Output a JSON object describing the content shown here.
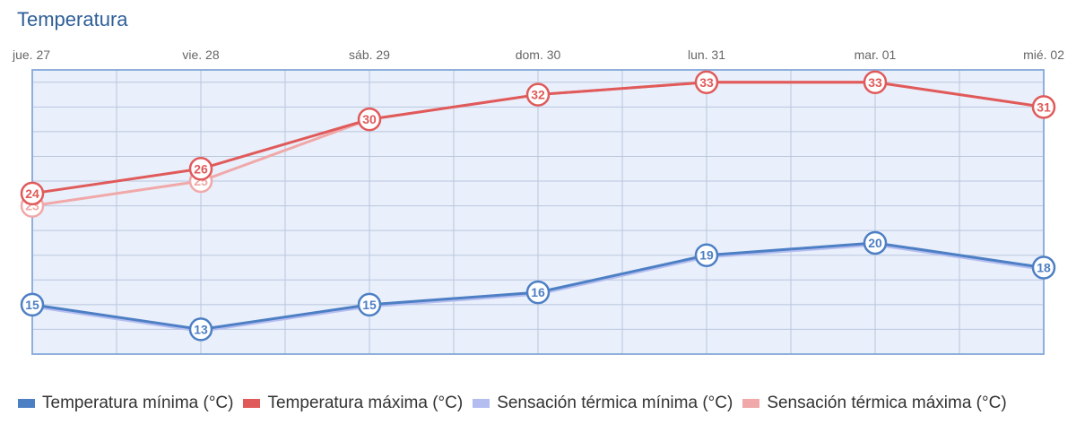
{
  "title": "Temperatura",
  "colors": {
    "plot_bg": "#e9effb",
    "grid": "#b9c7de",
    "border": "#8fb0dc",
    "min": "#4d7fc4",
    "max": "#e05a5a",
    "feel_min": "#b3bdf0",
    "feel_max": "#f0a8a8"
  },
  "chart_data": {
    "type": "line",
    "title": "Temperatura",
    "categories": [
      "jue. 27",
      "vie. 28",
      "sáb. 29",
      "dom. 30",
      "lun. 31",
      "mar. 01",
      "mié. 02"
    ],
    "ylim": [
      11,
      34
    ],
    "grid": true,
    "legend_position": "bottom",
    "series": [
      {
        "name": "Temperatura mínima (°C)",
        "key": "min",
        "values": [
          15,
          13,
          15,
          16,
          19,
          20,
          18
        ],
        "labels": true
      },
      {
        "name": "Temperatura máxima (°C)",
        "key": "max",
        "values": [
          24,
          26,
          30,
          32,
          33,
          33,
          31
        ],
        "labels": true
      },
      {
        "name": "Sensación térmica mínima (°C)",
        "key": "feel_min",
        "values": [
          15,
          13,
          15,
          16,
          19,
          20,
          18
        ],
        "labels": false
      },
      {
        "name": "Sensación térmica máxima (°C)",
        "key": "feel_max",
        "values": [
          23,
          25,
          30,
          32,
          33,
          33,
          31
        ],
        "labels": [
          0,
          1
        ]
      }
    ]
  }
}
